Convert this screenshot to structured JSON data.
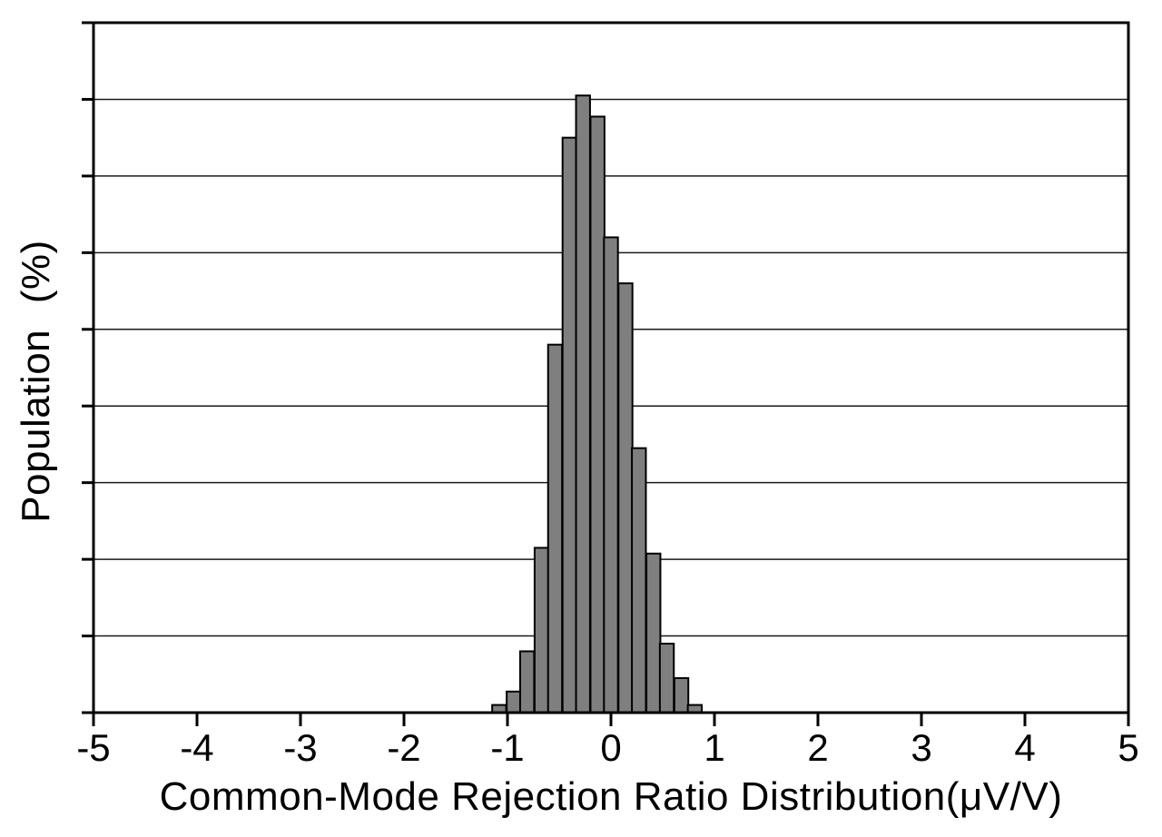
{
  "chart_data": {
    "type": "bar",
    "subtype": "histogram",
    "title": "",
    "xlabel": "Common-Mode Rejection Ratio Distribution(μV/V)",
    "ylabel": "Population (%)",
    "x_tick_labels": [
      "-5",
      "-4",
      "-3",
      "-2",
      "-1",
      "0",
      "1",
      "2",
      "3",
      "4",
      "5"
    ],
    "x_tick_values": [
      -5,
      -4,
      -3,
      -2,
      -1,
      0,
      1,
      2,
      3,
      4,
      5
    ],
    "xlim": [
      -5,
      5
    ],
    "ylim_pct": [
      0,
      18
    ],
    "y_axis_numeric_labels_visible": false,
    "y_gridline_interval_pct": 2,
    "y_gridlines_pct": [
      2,
      4,
      6,
      8,
      10,
      12,
      14,
      16
    ],
    "grid_on": true,
    "legend": "none",
    "bin_width": 0.135,
    "bars": [
      {
        "center": -1.08,
        "pct": 0.2
      },
      {
        "center": -0.94,
        "pct": 0.55
      },
      {
        "center": -0.81,
        "pct": 1.6
      },
      {
        "center": -0.67,
        "pct": 4.3
      },
      {
        "center": -0.54,
        "pct": 9.6
      },
      {
        "center": -0.4,
        "pct": 15.0
      },
      {
        "center": -0.27,
        "pct": 16.1
      },
      {
        "center": -0.13,
        "pct": 15.55
      },
      {
        "center": 0.0,
        "pct": 12.4
      },
      {
        "center": 0.14,
        "pct": 11.2
      },
      {
        "center": 0.27,
        "pct": 6.9
      },
      {
        "center": 0.41,
        "pct": 4.15
      },
      {
        "center": 0.54,
        "pct": 1.8
      },
      {
        "center": 0.68,
        "pct": 0.9
      },
      {
        "center": 0.81,
        "pct": 0.2
      }
    ],
    "colors": {
      "bar_fill": "#7f7f7f",
      "bar_stroke": "#000000",
      "axis": "#000000",
      "gridline": "#1a1a1a",
      "background": "#ffffff",
      "text": "#000000"
    }
  }
}
